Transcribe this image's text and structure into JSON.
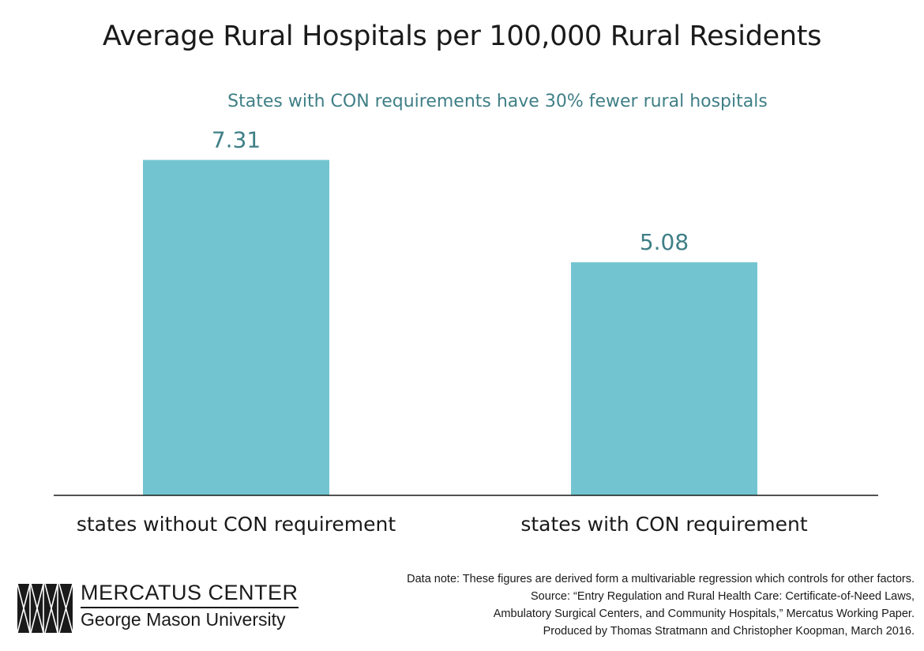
{
  "chart_data": {
    "type": "bar",
    "title": "Average Rural Hospitals per 100,000 Rural Residents",
    "subtitle": "States with CON requirements have 30% fewer rural hospitals",
    "categories": [
      "states without CON requirement",
      "states with CON requirement"
    ],
    "values": [
      7.31,
      5.08
    ],
    "value_labels": [
      "7.31",
      "5.08"
    ],
    "ylim": [
      0,
      7.8
    ],
    "grid": false,
    "legend": "none",
    "bar_color": "#72c5d0",
    "label_color": "#3f7f86"
  },
  "footer": {
    "logo_name": "MERCATUS CENTER",
    "logo_university": "George Mason University",
    "notes": [
      "Data note: These figures are derived form a multivariable regression which controls for other factors.",
      "Source: “Entry Regulation and Rural Health Care: Certificate-of-Need Laws,",
      "Ambulatory Surgical Centers, and Community Hospitals,” Mercatus Working Paper.",
      "Produced by Thomas Stratmann and Christopher Koopman, March 2016."
    ]
  }
}
